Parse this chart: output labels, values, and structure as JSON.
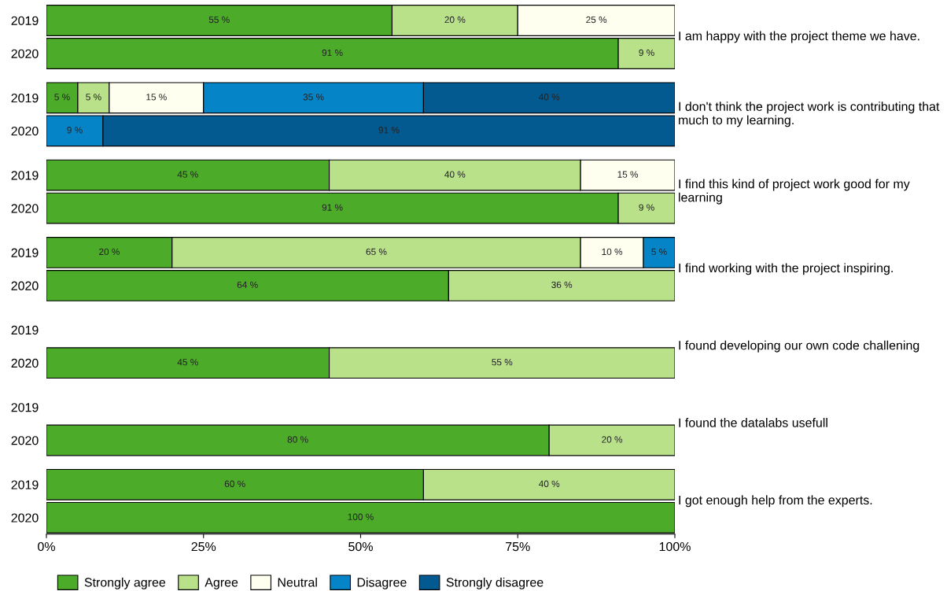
{
  "chart_data": [
    {
      "type": "bar",
      "orientation": "horizontal",
      "stacked": true,
      "title": "I am happy with the project theme we have.",
      "categories": [
        "2019",
        "2020"
      ],
      "xlim": [
        0,
        100
      ],
      "tick_labels": "y",
      "legend": false,
      "series": [
        {
          "color": "#4dab2a",
          "values": [
            55,
            91
          ],
          "value_labels": [
            "55 %",
            "91 %"
          ]
        },
        {
          "color": "#b8e18a",
          "values": [
            20,
            9
          ],
          "value_labels": [
            "20 %",
            "9 %"
          ]
        },
        {
          "color": "#fffff0",
          "values": [
            25,
            null
          ],
          "value_labels": [
            "25 %",
            null
          ]
        }
      ]
    },
    {
      "type": "bar",
      "orientation": "horizontal",
      "stacked": true,
      "title": "I don't think the project work is contributing that much to my learning.",
      "categories": [
        "2019",
        "2020"
      ],
      "xlim": [
        0,
        100
      ],
      "tick_labels": "y",
      "legend": false,
      "series": [
        {
          "color": "#4dab2a",
          "values": [
            5,
            null
          ],
          "value_labels": [
            "5 %",
            null
          ]
        },
        {
          "color": "#b8e18a",
          "values": [
            5,
            null
          ],
          "value_labels": [
            "5 %",
            null
          ]
        },
        {
          "color": "#fffff0",
          "values": [
            15,
            null
          ],
          "value_labels": [
            "15 %",
            null
          ]
        },
        {
          "color": "#0585c8",
          "values": [
            35,
            9
          ],
          "value_labels": [
            "35 %",
            "9 %"
          ]
        },
        {
          "color": "#035a91",
          "values": [
            40,
            91
          ],
          "value_labels": [
            "40 %",
            "91 %"
          ]
        }
      ]
    },
    {
      "type": "bar",
      "orientation": "horizontal",
      "stacked": true,
      "title": "I find this kind of project work good for my learning",
      "categories": [
        "2019",
        "2020"
      ],
      "xlim": [
        0,
        100
      ],
      "tick_labels": "y",
      "legend": false,
      "series": [
        {
          "color": "#4dab2a",
          "values": [
            45,
            91
          ],
          "value_labels": [
            "45 %",
            "91 %"
          ]
        },
        {
          "color": "#b8e18a",
          "values": [
            40,
            9
          ],
          "value_labels": [
            "40 %",
            "9 %"
          ]
        },
        {
          "color": "#fffff0",
          "values": [
            15,
            null
          ],
          "value_labels": [
            "15 %",
            null
          ]
        }
      ]
    },
    {
      "type": "bar",
      "orientation": "horizontal",
      "stacked": true,
      "title": "I find working with the project inspiring.",
      "categories": [
        "2019",
        "2020"
      ],
      "xlim": [
        0,
        100
      ],
      "tick_labels": "y",
      "legend": false,
      "series": [
        {
          "color": "#4dab2a",
          "values": [
            20,
            64
          ],
          "value_labels": [
            "20 %",
            "64 %"
          ]
        },
        {
          "color": "#b8e18a",
          "values": [
            65,
            36
          ],
          "value_labels": [
            "65 %",
            "36 %"
          ]
        },
        {
          "color": "#fffff0",
          "values": [
            10,
            null
          ],
          "value_labels": [
            "10 %",
            null
          ]
        },
        {
          "color": "#0585c8",
          "values": [
            5,
            null
          ],
          "value_labels": [
            "5 %",
            null
          ]
        }
      ]
    },
    {
      "type": "bar",
      "orientation": "horizontal",
      "stacked": true,
      "title": "I found developing our own code challening",
      "categories": [
        "2019",
        "2020"
      ],
      "xlim": [
        0,
        100
      ],
      "tick_labels": "y",
      "legend": false,
      "series": [
        {
          "color": "#4dab2a",
          "values": [
            null,
            45
          ],
          "value_labels": [
            null,
            "45 %"
          ]
        },
        {
          "color": "#b8e18a",
          "values": [
            null,
            55
          ],
          "value_labels": [
            null,
            "55 %"
          ]
        }
      ]
    },
    {
      "type": "bar",
      "orientation": "horizontal",
      "stacked": true,
      "title": "I found the datalabs usefull",
      "categories": [
        "2019",
        "2020"
      ],
      "xlim": [
        0,
        100
      ],
      "tick_labels": "y",
      "legend": false,
      "series": [
        {
          "color": "#4dab2a",
          "values": [
            null,
            80
          ],
          "value_labels": [
            null,
            "80 %"
          ]
        },
        {
          "color": "#b8e18a",
          "values": [
            null,
            20
          ],
          "value_labels": [
            null,
            "20 %"
          ]
        }
      ]
    },
    {
      "type": "bar",
      "orientation": "horizontal",
      "stacked": true,
      "title": "I got enough help from the experts.",
      "categories": [
        "2019",
        "2020"
      ],
      "xlim": [
        0,
        100
      ],
      "xticks": [
        {
          "value": 0,
          "label": "0%"
        },
        {
          "value": 25,
          "label": "25%"
        },
        {
          "value": 50,
          "label": "50%"
        },
        {
          "value": 75,
          "label": "75%"
        },
        {
          "value": 100,
          "label": "100%"
        }
      ],
      "legend": "bottom",
      "series": [
        {
          "name": "Strongly agree",
          "color": "#4dab2a",
          "values": [
            60,
            100
          ],
          "value_labels": [
            "60 %",
            "100 %"
          ]
        },
        {
          "name": "Agree",
          "color": "#b8e18a",
          "values": [
            40,
            null
          ],
          "value_labels": [
            "40 %",
            null
          ]
        },
        {
          "name": "Neutral",
          "color": "#fffff0",
          "values": [
            null,
            null
          ]
        },
        {
          "name": "Disagree",
          "color": "#0585c8",
          "values": [
            null,
            null
          ]
        },
        {
          "name": "Strongly disagree",
          "color": "#035a91",
          "values": [
            null,
            null
          ]
        }
      ]
    }
  ]
}
